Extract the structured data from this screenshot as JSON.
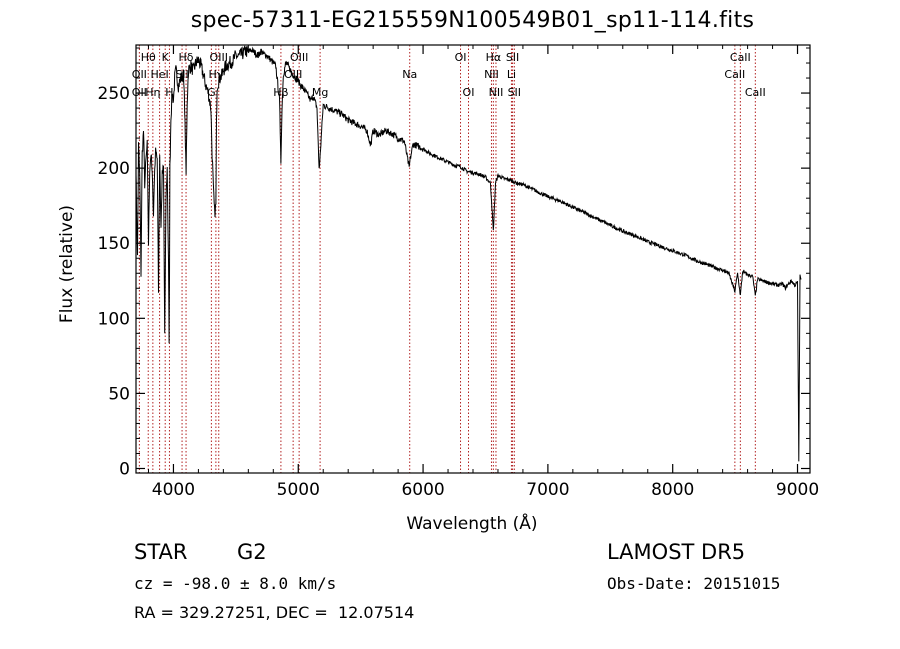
{
  "chart_data": {
    "type": "line",
    "title": "spec-57311-EG215559N100549B01_sp11-114.fits",
    "xlabel": "Wavelength (Å)",
    "ylabel": "Flux (relative)",
    "xlim": [
      3700,
      9100
    ],
    "ylim": [
      -3,
      282
    ],
    "xticks": [
      4000,
      5000,
      6000,
      7000,
      8000,
      9000
    ],
    "xtick_labels": [
      "4000",
      "5000",
      "6000",
      "7000",
      "8000",
      "9000"
    ],
    "yticks": [
      0,
      50,
      100,
      150,
      200,
      250
    ],
    "ytick_labels": [
      "0",
      "50",
      "100",
      "150",
      "200",
      "250"
    ],
    "grid": false,
    "line_color": "#000000",
    "marker_color": "#b22222",
    "series": [
      {
        "x": [
          3700,
          3705,
          3712,
          3720,
          3730,
          3740,
          3750,
          3760,
          3770,
          3780,
          3790,
          3800,
          3810,
          3820,
          3830,
          3840,
          3850,
          3860,
          3870,
          3880,
          3890,
          3900,
          3910,
          3920,
          3930,
          3934,
          3940,
          3950,
          3960,
          3965,
          3968,
          3972,
          3980,
          3990,
          4000,
          4010,
          4020,
          4040,
          4060,
          4080,
          4090,
          4101,
          4110,
          4120,
          4140,
          4160,
          4180,
          4200,
          4220,
          4240,
          4260,
          4280,
          4300,
          4310,
          4320,
          4330,
          4340,
          4345,
          4350,
          4370,
          4390,
          4400,
          4420,
          4450,
          4480,
          4500,
          4520,
          4550,
          4580,
          4600,
          4620,
          4650,
          4680,
          4700,
          4720,
          4750,
          4780,
          4800,
          4820,
          4850,
          4861,
          4870,
          4880,
          4900,
          4920,
          4940,
          4960,
          4980,
          5000,
          5020,
          5050,
          5080,
          5100,
          5120,
          5150,
          5167,
          5173,
          5184,
          5200,
          5250,
          5300,
          5350,
          5400,
          5450,
          5500,
          5550,
          5580,
          5600,
          5650,
          5700,
          5750,
          5800,
          5850,
          5889,
          5895,
          5920,
          5950,
          6000,
          6050,
          6100,
          6150,
          6200,
          6250,
          6300,
          6350,
          6400,
          6450,
          6500,
          6540,
          6563,
          6580,
          6600,
          6650,
          6700,
          6750,
          6800,
          6900,
          7000,
          7100,
          7200,
          7300,
          7400,
          7500,
          7600,
          7700,
          7800,
          7900,
          8000,
          8100,
          8200,
          8300,
          8400,
          8450,
          8498,
          8520,
          8542,
          8560,
          8600,
          8640,
          8662,
          8680,
          8720,
          8760,
          8800,
          8850,
          8880,
          8900,
          8950,
          8980,
          9000,
          9010,
          9020,
          9030
        ],
        "y": [
          200,
          170,
          140,
          215,
          195,
          130,
          210,
          225,
          190,
          205,
          215,
          150,
          200,
          210,
          195,
          170,
          200,
          215,
          205,
          120,
          210,
          160,
          195,
          200,
          90,
          120,
          180,
          200,
          140,
          80,
          130,
          200,
          235,
          250,
          245,
          260,
          265,
          255,
          260,
          262,
          240,
          195,
          245,
          265,
          268,
          265,
          270,
          272,
          268,
          262,
          255,
          250,
          240,
          210,
          185,
          170,
          175,
          230,
          255,
          260,
          262,
          265,
          268,
          270,
          272,
          275,
          274,
          276,
          278,
          277,
          279,
          277,
          275,
          278,
          276,
          275,
          272,
          270,
          268,
          245,
          205,
          240,
          262,
          270,
          268,
          265,
          262,
          260,
          258,
          255,
          252,
          248,
          245,
          248,
          240,
          200,
          205,
          220,
          242,
          240,
          238,
          236,
          232,
          230,
          228,
          225,
          215,
          225,
          222,
          225,
          223,
          220,
          218,
          200,
          205,
          216,
          215,
          213,
          210,
          208,
          206,
          204,
          202,
          201,
          198,
          197,
          196,
          194,
          190,
          158,
          190,
          195,
          193,
          192,
          190,
          189,
          185,
          181,
          178,
          174,
          170,
          166,
          162,
          158,
          155,
          151,
          148,
          145,
          142,
          138,
          135,
          132,
          130,
          118,
          130,
          115,
          131,
          129,
          128,
          115,
          126,
          125,
          124,
          123,
          122,
          123,
          120,
          125,
          122,
          124,
          5,
          128,
          126
        ]
      }
    ],
    "lines": [
      {
        "label": "Hθ",
        "wl": 3798,
        "row": 0
      },
      {
        "label": "K",
        "wl": 3934,
        "row": 0
      },
      {
        "label": "Hδ",
        "wl": 4101,
        "row": 0
      },
      {
        "label": "OIII",
        "wl": 4363,
        "row": 0
      },
      {
        "label": "OIII",
        "wl": 5007,
        "row": 0
      },
      {
        "label": "OI",
        "wl": 6300,
        "row": 0
      },
      {
        "label": "Hα",
        "wl": 6563,
        "row": 0
      },
      {
        "label": "SII",
        "wl": 6717,
        "row": 0
      },
      {
        "label": "CaII",
        "wl": 8542,
        "row": 0
      },
      {
        "label": "OII",
        "wl": 3727,
        "row": 1
      },
      {
        "label": "HeI",
        "wl": 3889,
        "row": 1
      },
      {
        "label": "SII",
        "wl": 4069,
        "row": 1
      },
      {
        "label": "Hγ",
        "wl": 4340,
        "row": 1
      },
      {
        "label": "OIII",
        "wl": 4959,
        "row": 1
      },
      {
        "label": "Na",
        "wl": 5893,
        "row": 1
      },
      {
        "label": "NII",
        "wl": 6548,
        "row": 1
      },
      {
        "label": "Li",
        "wl": 6708,
        "row": 1
      },
      {
        "label": "CaII",
        "wl": 8498,
        "row": 1
      },
      {
        "label": "OII",
        "wl": 3727,
        "row": 2
      },
      {
        "label": "Hη",
        "wl": 3835,
        "row": 2
      },
      {
        "label": "H",
        "wl": 3968,
        "row": 2
      },
      {
        "label": "G",
        "wl": 4304,
        "row": 2
      },
      {
        "label": "Hβ",
        "wl": 4861,
        "row": 2
      },
      {
        "label": "Mg",
        "wl": 5175,
        "row": 2
      },
      {
        "label": "OI",
        "wl": 6364,
        "row": 2
      },
      {
        "label": "NII",
        "wl": 6584,
        "row": 2
      },
      {
        "label": "SII",
        "wl": 6731,
        "row": 2
      },
      {
        "label": "CaII",
        "wl": 8662,
        "row": 2
      }
    ],
    "marker_wavelengths": [
      3727,
      3798,
      3835,
      3889,
      3934,
      3968,
      4069,
      4101,
      4304,
      4340,
      4363,
      4861,
      4959,
      5007,
      5175,
      5893,
      6300,
      6364,
      6548,
      6563,
      6584,
      6708,
      6717,
      6731,
      8498,
      8542,
      8662
    ]
  },
  "info": {
    "obj_class": "STAR",
    "subclass": "G2",
    "survey": "LAMOST DR5",
    "cz": "cz = -98.0 ± 8.0 km/s",
    "obs_date": "Obs-Date: 20151015",
    "radec": "RA = 329.27251, DEC =  12.07514"
  }
}
